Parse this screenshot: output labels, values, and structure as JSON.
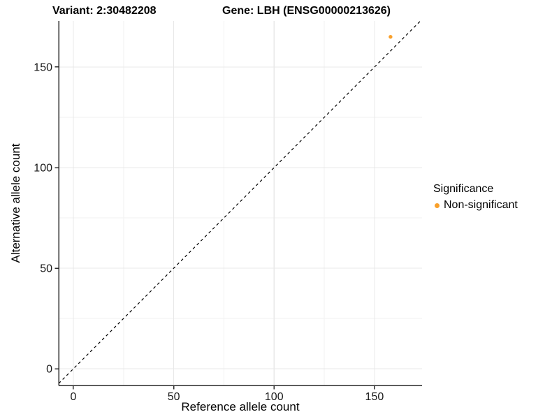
{
  "titles": {
    "variant": "Variant: 2:30482208",
    "gene": "Gene: LBH (ENSG00000213626)"
  },
  "axes": {
    "x_label": "Reference allele count",
    "y_label": "Alternative allele count"
  },
  "legend": {
    "title": "Significance",
    "items": [
      {
        "label": "Non-significant",
        "color": "#F9A02B",
        "marker": "dot-icon"
      }
    ]
  },
  "chart_data": {
    "type": "scatter",
    "title": "Variant: 2:30482208 | Gene: LBH (ENSG00000213626)",
    "xlabel": "Reference allele count",
    "ylabel": "Alternative allele count",
    "x_ticks": [
      0,
      50,
      100,
      150
    ],
    "y_ticks": [
      0,
      50,
      100,
      150
    ],
    "x_minor_ticks": [
      25,
      75,
      125
    ],
    "y_minor_ticks": [
      25,
      75,
      125
    ],
    "xlim": [
      -7.3,
      173.7
    ],
    "ylim": [
      -8.3,
      172.9
    ],
    "grid": true,
    "legend_position": "right",
    "series": [
      {
        "name": "Non-significant",
        "color": "#F9A02B",
        "points": [
          {
            "x": 158,
            "y": 165
          }
        ]
      }
    ],
    "reference_line": {
      "type": "identity",
      "style": "dashed",
      "color": "#000000"
    },
    "colors": {
      "axis_line": "#2b2b2b",
      "tick_label": "#1a1a1a",
      "grid_major": "#e8e8e8",
      "grid_minor": "#f2f2f2"
    }
  }
}
